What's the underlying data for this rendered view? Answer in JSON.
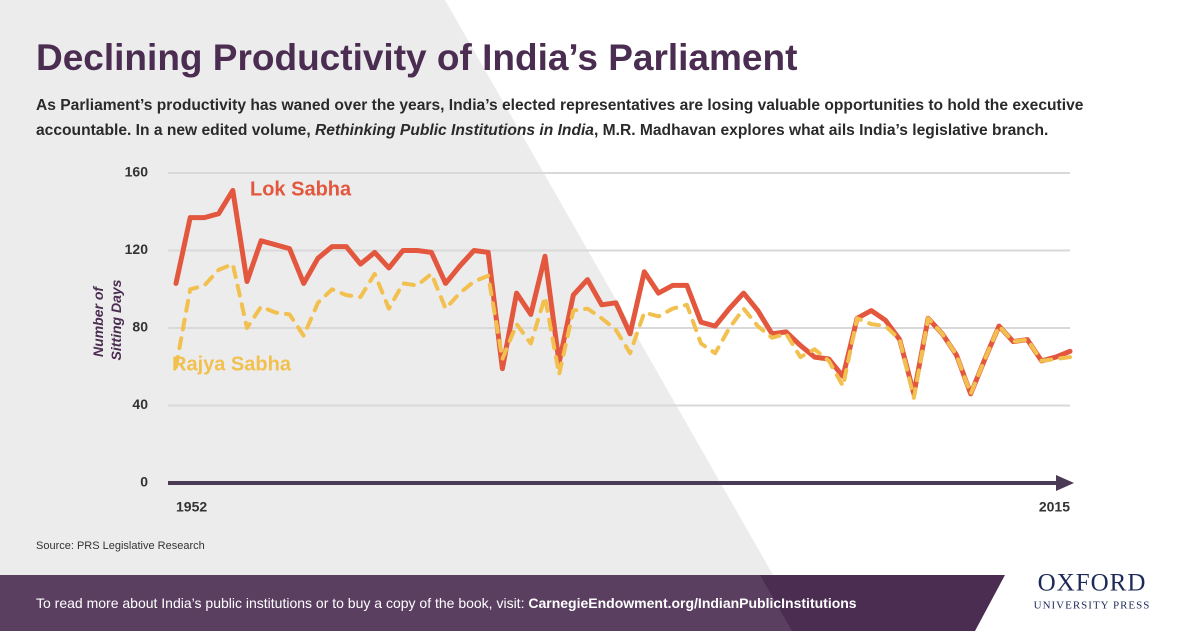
{
  "chart_data": {
    "type": "line",
    "title": "Declining Productivity of India’s Parliament",
    "subtitle": [
      "As Parliament’s productivity has waned over the years, India’s elected representatives are losing valuable opportunities to hold the executive accountable. In a new edited volume, ",
      "Rethinking Public Institutions in India",
      ", M.R. Madhavan explores what ails India’s legislative branch."
    ],
    "y_label": [
      "Number of",
      "Sitting Days"
    ],
    "x": [
      1952,
      1953,
      1954,
      1955,
      1956,
      1957,
      1958,
      1959,
      1960,
      1961,
      1962,
      1963,
      1964,
      1965,
      1966,
      1967,
      1968,
      1969,
      1970,
      1971,
      1972,
      1973,
      1974,
      1975,
      1976,
      1977,
      1978,
      1979,
      1980,
      1981,
      1982,
      1983,
      1984,
      1985,
      1986,
      1987,
      1988,
      1989,
      1990,
      1991,
      1992,
      1993,
      1994,
      1995,
      1996,
      1997,
      1998,
      1999,
      2000,
      2001,
      2002,
      2003,
      2004,
      2005,
      2006,
      2007,
      2008,
      2009,
      2010,
      2011,
      2012,
      2013,
      2014,
      2015
    ],
    "series": [
      {
        "name": "Lok Sabha",
        "color": "#e2573d",
        "line_style": "solid",
        "values": [
          103,
          137,
          137,
          139,
          151,
          104,
          125,
          123,
          121,
          103,
          116,
          122,
          122,
          113,
          119,
          111,
          120,
          120,
          119,
          103,
          112,
          120,
          119,
          59,
          98,
          87,
          117,
          62,
          97,
          105,
          92,
          93,
          77,
          109,
          98,
          102,
          102,
          83,
          81,
          90,
          98,
          89,
          77,
          78,
          71,
          65,
          64,
          55,
          85,
          89,
          84,
          74,
          46,
          85,
          77,
          66,
          46,
          64,
          81,
          73,
          74,
          63,
          65,
          68
        ]
      },
      {
        "name": "Rajya Sabha",
        "color": "#f2c04f",
        "line_style": "dashed",
        "values": [
          60,
          100,
          102,
          110,
          113,
          80,
          91,
          88,
          87,
          76,
          93,
          100,
          97,
          96,
          108,
          90,
          103,
          102,
          108,
          90,
          98,
          104,
          107,
          64,
          82,
          72,
          96,
          56,
          89,
          90,
          85,
          79,
          67,
          88,
          86,
          90,
          92,
          72,
          67,
          80,
          90,
          81,
          75,
          77,
          65,
          69,
          63,
          50,
          85,
          82,
          81,
          74,
          44,
          85,
          77,
          66,
          46,
          64,
          81,
          73,
          74,
          63,
          64,
          65
        ]
      }
    ],
    "xlim": [
      1952,
      2015
    ],
    "xticks": [
      1952,
      2015
    ],
    "ylim": [
      0,
      160
    ],
    "yticks": [
      0,
      40,
      80,
      120,
      160
    ],
    "grid": true,
    "source": "Source: PRS Legislative Research",
    "footer": [
      "To read more about India’s public institutions or to buy a copy of the book, visit: ",
      "CarnegieEndowment.org/IndianPublicInstitutions"
    ],
    "logo": [
      "OXFORD",
      "UNIVERSITY PRESS"
    ]
  }
}
